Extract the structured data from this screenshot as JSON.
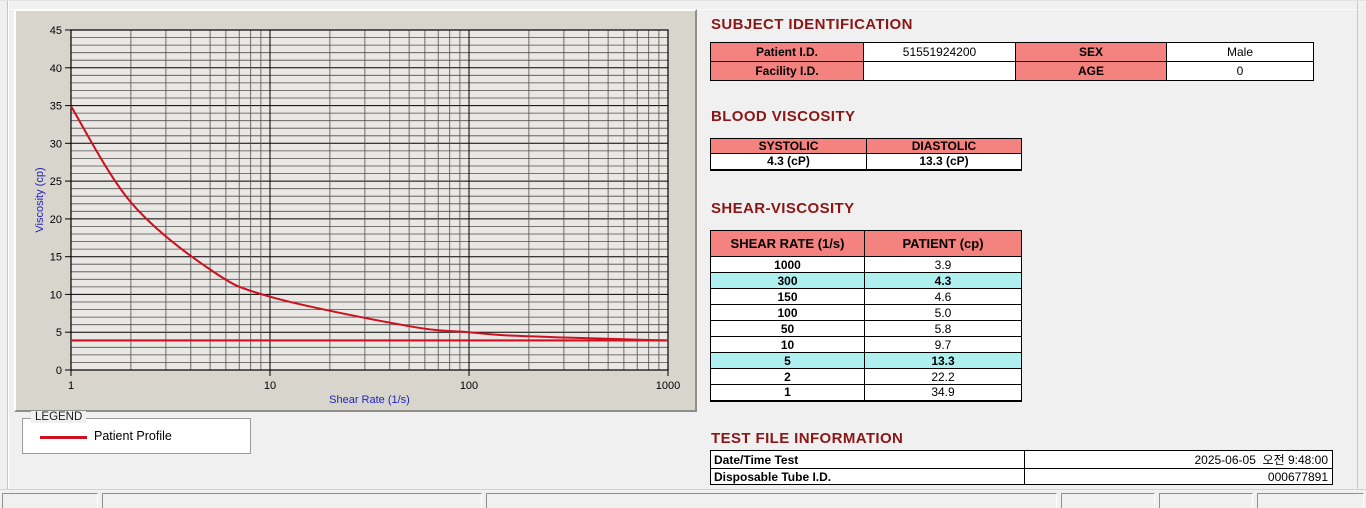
{
  "colors": {
    "heading": "#8b1616",
    "table_header_bg": "#f4827e",
    "highlight_bg": "#aeefef",
    "axis_label": "#2323be",
    "series": "#ce1020",
    "grid_minor": "#4d4d4d",
    "grid_major": "#000000",
    "plot_bg": "#e9e8e4",
    "panel_bg": "#d8d5cd"
  },
  "subject_identification": {
    "title": "SUBJECT IDENTIFICATION",
    "rows": [
      {
        "label1": "Patient I.D.",
        "value1": "51551924200",
        "label2": "SEX",
        "value2": "Male"
      },
      {
        "label1": "Facility I.D.",
        "value1": "",
        "label2": "AGE",
        "value2": "0"
      }
    ]
  },
  "blood_viscosity": {
    "title": "BLOOD VISCOSITY",
    "headers": [
      "SYSTOLIC",
      "DIASTOLIC"
    ],
    "values": [
      "4.3 (cP)",
      "13.3 (cP)"
    ]
  },
  "shear_viscosity": {
    "title": "SHEAR-VISCOSITY",
    "headers": [
      "SHEAR RATE (1/s)",
      "PATIENT (cp)"
    ],
    "rows": [
      {
        "shear_rate": "1000",
        "patient": "3.9",
        "highlight": false
      },
      {
        "shear_rate": "300",
        "patient": "4.3",
        "highlight": true
      },
      {
        "shear_rate": "150",
        "patient": "4.6",
        "highlight": false
      },
      {
        "shear_rate": "100",
        "patient": "5.0",
        "highlight": false
      },
      {
        "shear_rate": "50",
        "patient": "5.8",
        "highlight": false
      },
      {
        "shear_rate": "10",
        "patient": "9.7",
        "highlight": false
      },
      {
        "shear_rate": "5",
        "patient": "13.3",
        "highlight": true
      },
      {
        "shear_rate": "2",
        "patient": "22.2",
        "highlight": false
      },
      {
        "shear_rate": "1",
        "patient": "34.9",
        "highlight": false
      }
    ]
  },
  "test_file_information": {
    "title": "TEST FILE INFORMATION",
    "rows": [
      {
        "label": "Date/Time Test",
        "value": "2025-06-05  오전 9:48:00"
      },
      {
        "label": "Disposable Tube I.D.",
        "value": "000677891"
      }
    ]
  },
  "legend": {
    "group_title": "LEGEND",
    "entries": [
      {
        "label": "Patient Profile",
        "color": "#ce1020"
      }
    ]
  },
  "chart_data": {
    "type": "line",
    "xscale": "log",
    "x": [
      1,
      2,
      5,
      10,
      50,
      100,
      150,
      300,
      1000
    ],
    "series": [
      {
        "name": "Patient Profile",
        "color": "#ce1020",
        "values": [
          34.9,
          22.2,
          13.3,
          9.7,
          5.8,
          5.0,
          4.6,
          4.3,
          3.9
        ]
      }
    ],
    "reference_line_y": 3.9,
    "title": "",
    "xlabel": "Shear Rate (1/s)",
    "ylabel": "Viscosity (cp)",
    "xlim": [
      1,
      1000
    ],
    "ylim": [
      0,
      45
    ],
    "x_ticks": [
      1,
      10,
      100,
      1000
    ],
    "y_major_step": 5,
    "y_minor_step": 1,
    "grid": true,
    "legend_position": "below-left"
  },
  "status_bar": {
    "panels": [
      "",
      "",
      "",
      "",
      "",
      ""
    ]
  }
}
